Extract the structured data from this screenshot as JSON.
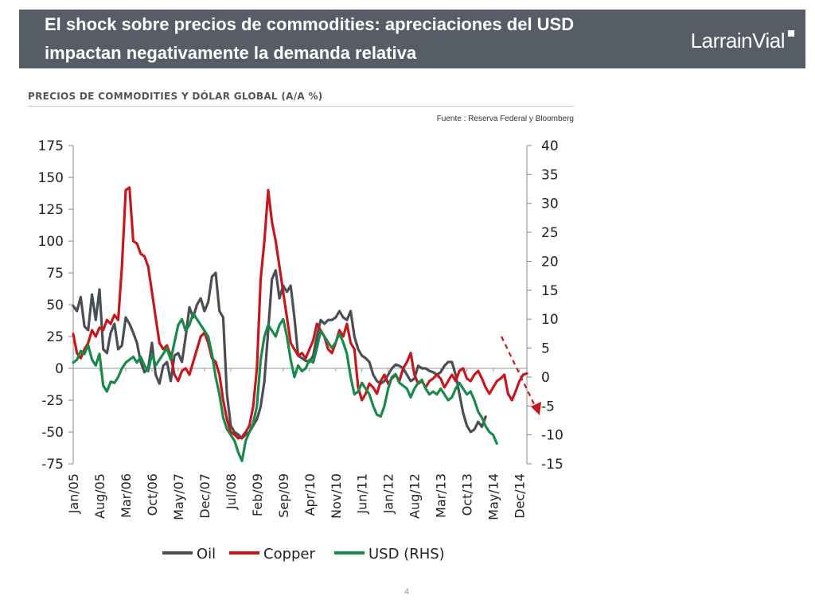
{
  "header": {
    "title_line1": "El shock sobre precios de commodities: apreciaciones del USD",
    "title_line2": "impactan negativamente la demanda relativa",
    "logo": "LarrainVial"
  },
  "chart_subtitle": "PRECIOS DE COMMODITIES Y DÓLAR GLOBAL (A/A %)",
  "source": "Fuente : Reserva Federal y Bloomberg",
  "page_number": "4",
  "colors": {
    "oil": "#4a4f57",
    "copper": "#c8161d",
    "usd": "#1a8a4a",
    "header": "#575d66"
  },
  "chart_data": {
    "type": "line",
    "left_axis": {
      "min": -75,
      "max": 175,
      "ticks": [
        175,
        150,
        125,
        100,
        75,
        50,
        25,
        0,
        -25,
        -50,
        -75
      ]
    },
    "right_axis": {
      "min": -15,
      "max": 40,
      "ticks": [
        40,
        35,
        30,
        25,
        20,
        15,
        10,
        5,
        0,
        -5,
        -10,
        -15
      ]
    },
    "x_ticks": [
      "Jan/05",
      "Aug/05",
      "Mar/06",
      "Oct/06",
      "May/07",
      "Dec/07",
      "Jul/08",
      "Feb/09",
      "Sep/09",
      "Apr/10",
      "Nov/10",
      "Jun/11",
      "Jan/12",
      "Aug/12",
      "Mar/13",
      "Oct/13",
      "May/14",
      "Dec/14"
    ],
    "x_start": "Jan/05",
    "legend_position": "bottom",
    "series": [
      {
        "name": "Oil",
        "axis": "left",
        "color": "#4a4f57",
        "values": [
          49,
          45,
          56,
          33,
          30,
          58,
          38,
          62,
          15,
          12,
          28,
          35,
          15,
          18,
          40,
          35,
          28,
          20,
          5,
          -3,
          0,
          20,
          -5,
          -12,
          2,
          5,
          -10,
          10,
          12,
          5,
          25,
          48,
          40,
          50,
          55,
          45,
          52,
          72,
          75,
          45,
          40,
          -20,
          -45,
          -50,
          -52,
          -55,
          -52,
          -50,
          -45,
          -40,
          -30,
          -10,
          30,
          70,
          77,
          55,
          65,
          60,
          65,
          40,
          10,
          8,
          6,
          5,
          10,
          25,
          38,
          35,
          38,
          38,
          40,
          45,
          40,
          38,
          45,
          25,
          15,
          10,
          8,
          5,
          -5,
          -10,
          -12,
          -10,
          -5,
          0,
          3,
          2,
          0,
          -5,
          -10,
          -8,
          2,
          0,
          0,
          -2,
          -3,
          -5,
          -3,
          2,
          5,
          5,
          -5,
          -20,
          -35,
          -45,
          -50,
          -48,
          -42,
          -46,
          -38
        ]
      },
      {
        "name": "Copper",
        "axis": "left",
        "color": "#c8161d",
        "values": [
          27,
          12,
          8,
          15,
          20,
          30,
          25,
          32,
          30,
          38,
          35,
          42,
          38,
          80,
          140,
          142,
          100,
          98,
          90,
          88,
          80,
          60,
          40,
          20,
          15,
          18,
          10,
          -5,
          -10,
          -2,
          0,
          -5,
          5,
          15,
          25,
          28,
          20,
          8,
          5,
          -5,
          -25,
          -40,
          -50,
          -52,
          -55,
          -54,
          -50,
          -45,
          -30,
          0,
          70,
          100,
          140,
          115,
          100,
          80,
          60,
          40,
          20,
          15,
          10,
          12,
          8,
          15,
          22,
          35,
          30,
          25,
          15,
          12,
          20,
          30,
          25,
          35,
          20,
          15,
          -15,
          -25,
          -20,
          -12,
          -15,
          -20,
          -10,
          -5,
          -12,
          -8,
          -5,
          -10,
          0,
          5,
          12,
          -5,
          -12,
          -10,
          -15,
          -10,
          -8,
          -5,
          -8,
          -15,
          -10,
          -5,
          -10,
          -2,
          0,
          -8,
          -10,
          -5,
          -2,
          -8,
          -15,
          -20,
          -15,
          -10,
          -8,
          -5,
          -20,
          -25,
          -18,
          -10,
          -5,
          -4
        ]
      },
      {
        "name": "USD (RHS)",
        "axis": "right",
        "color": "#1a8a4a",
        "values": [
          2.5,
          3,
          4.5,
          4,
          5.5,
          3,
          2,
          4,
          -1.5,
          -2.5,
          -0.8,
          -1,
          0,
          1.5,
          2.5,
          3,
          3.5,
          2.5,
          3.5,
          2,
          1,
          4,
          2,
          3,
          4,
          5,
          3,
          6,
          9,
          10,
          8,
          9,
          11,
          10,
          9,
          8,
          7,
          4,
          0,
          -3,
          -7,
          -9,
          -10,
          -11,
          -13,
          -14.5,
          -11,
          -9.5,
          -8,
          -5,
          3,
          7,
          9,
          8,
          7,
          9,
          10,
          7,
          3,
          0,
          2,
          1,
          1.5,
          3,
          2.5,
          5,
          8,
          7,
          6,
          5,
          6,
          7.5,
          6,
          4,
          0,
          -3,
          -2.5,
          -1,
          -2,
          -3,
          -5,
          -6.5,
          -6.8,
          -5,
          -2,
          0,
          0.5,
          -1,
          -1.5,
          -2,
          -3.5,
          -2,
          -1,
          -0.5,
          -2,
          -3,
          -2.5,
          -3,
          -2,
          -3,
          -4,
          -3.5,
          -2,
          -1,
          -2,
          -3,
          -2.5,
          -4,
          -6,
          -7,
          -8.5,
          -9.5,
          -10,
          -11.5
        ]
      }
    ],
    "annotation": "dashed-arrow-down"
  }
}
